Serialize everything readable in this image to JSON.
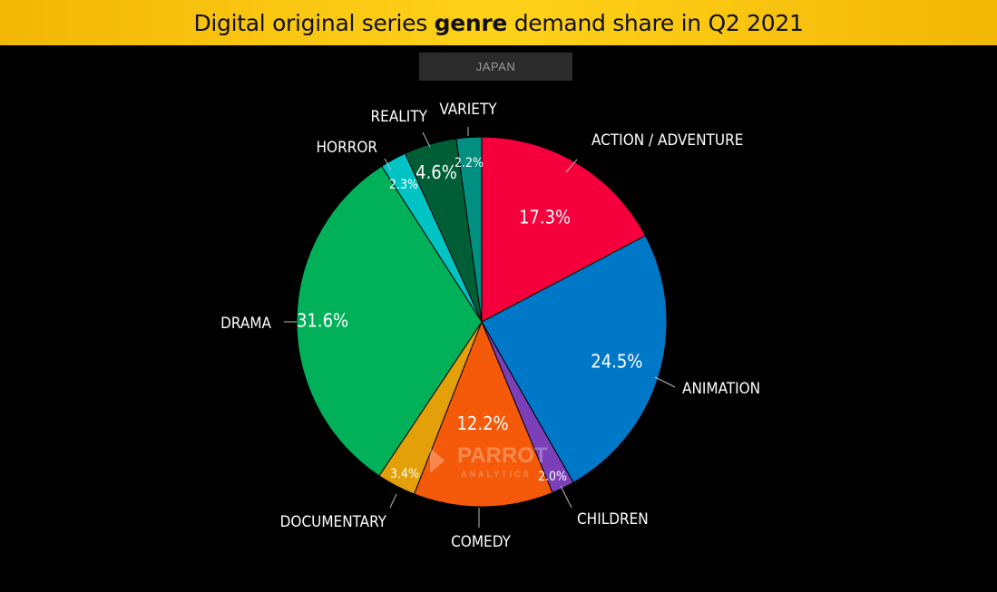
{
  "header": {
    "title_pre": "Digital original series ",
    "title_bold": "genre",
    "title_post": " demand share in Q2 2021"
  },
  "region_label": "JAPAN",
  "watermark": {
    "line1": "PARROT",
    "line2": "ANALYTICS"
  },
  "chart_data": {
    "type": "pie",
    "title": "Digital original series genre demand share in Q2 2021",
    "subtitle": "JAPAN",
    "unit": "%",
    "slices": [
      {
        "label": "ACTION / ADVENTURE",
        "value": 17.3,
        "display": "17.3%",
        "color": "#f5003d"
      },
      {
        "label": "ANIMATION",
        "value": 24.5,
        "display": "24.5%",
        "color": "#0078c8"
      },
      {
        "label": "CHILDREN",
        "value": 2.0,
        "display": "2.0%",
        "color": "#7b3fb8"
      },
      {
        "label": "COMEDY",
        "value": 12.2,
        "display": "12.2%",
        "color": "#f55a0a"
      },
      {
        "label": "DOCUMENTARY",
        "value": 3.4,
        "display": "3.4%",
        "color": "#e3a008"
      },
      {
        "label": "DRAMA",
        "value": 31.6,
        "display": "31.6%",
        "color": "#00b159"
      },
      {
        "label": "HORROR",
        "value": 2.3,
        "display": "2.3%",
        "color": "#00c4c4"
      },
      {
        "label": "REALITY",
        "value": 4.6,
        "display": "4.6%",
        "color": "#005e36"
      },
      {
        "label": "VARIETY",
        "value": 2.2,
        "display": "2.2%",
        "color": "#008f80"
      }
    ]
  }
}
